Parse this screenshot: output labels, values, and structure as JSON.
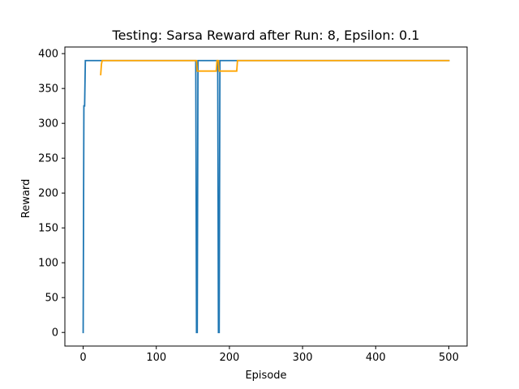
{
  "chart_data": {
    "type": "line",
    "title": "Testing: Sarsa Reward after Run: 8, Epsilon: 0.1",
    "xlabel": "Episode",
    "ylabel": "Reward",
    "xlim": [
      -25,
      525
    ],
    "ylim": [
      -19.5,
      409.5
    ],
    "xticks": [
      0,
      100,
      200,
      300,
      400,
      500
    ],
    "yticks": [
      0,
      50,
      100,
      150,
      200,
      250,
      300,
      350,
      400
    ],
    "grid": false,
    "series": [
      {
        "color": "#1f77b4",
        "x": [
          0,
          1,
          2,
          3,
          4,
          154,
          155,
          156,
          157,
          184,
          185,
          186,
          187,
          500
        ],
        "y": [
          0,
          325,
          325,
          390,
          390,
          390,
          0,
          0,
          390,
          390,
          0,
          0,
          390,
          390
        ]
      },
      {
        "color": "#ffa500",
        "x": [
          24,
          25,
          26,
          27,
          155,
          156,
          157,
          182,
          183,
          184,
          185,
          186,
          187,
          210,
          211,
          212,
          500
        ],
        "y": [
          370,
          385,
          390,
          390,
          390,
          375,
          375,
          375,
          390,
          390,
          390,
          375,
          375,
          375,
          390,
          390,
          390
        ]
      }
    ]
  }
}
